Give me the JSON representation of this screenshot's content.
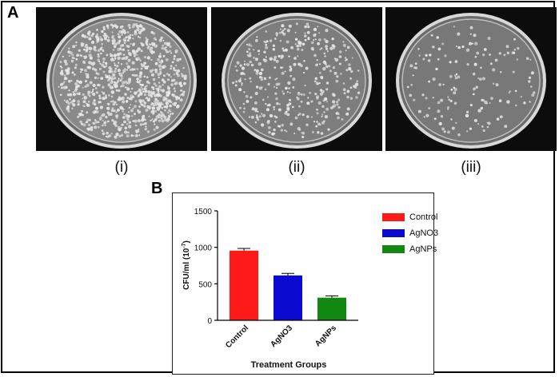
{
  "panel_a": {
    "label": "A",
    "plates": [
      {
        "caption": "(i)",
        "colony_density": "high"
      },
      {
        "caption": "(ii)",
        "colony_density": "medium"
      },
      {
        "caption": "(iii)",
        "colony_density": "low"
      }
    ]
  },
  "panel_b": {
    "label": "B"
  },
  "chart_data": {
    "type": "bar",
    "categories": [
      "Control",
      "AgNO3",
      "AgNPs"
    ],
    "values": [
      955,
      615,
      310
    ],
    "errors": [
      30,
      28,
      25
    ],
    "colors": [
      "#ff1a1a",
      "#0a0ad0",
      "#118811"
    ],
    "title": "",
    "xlabel": "Treatment Groups",
    "ylabel": "CFU/ml (10",
    "ylabel_sup": "-7",
    "ylabel_end": ")",
    "ylim": [
      0,
      1500
    ],
    "yticks": [
      0,
      500,
      1000,
      1500
    ],
    "legend": [
      "Control",
      "AgNO3",
      "AgNPs"
    ],
    "legend_position": "top-right",
    "grid": false
  }
}
